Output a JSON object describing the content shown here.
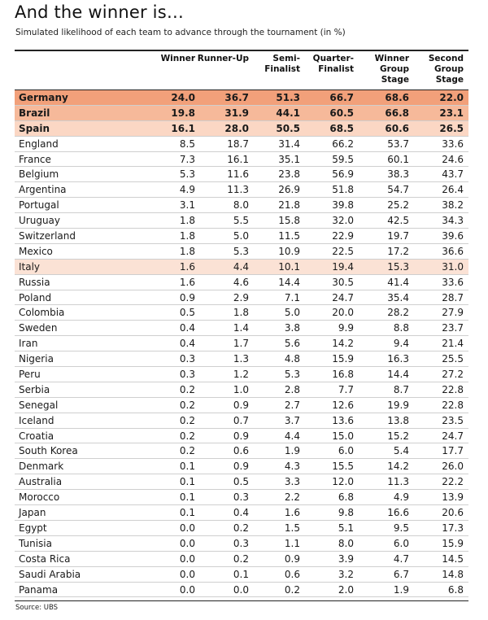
{
  "title": "And the winner is…",
  "subtitle": "Simulated likelihood of each team to advance through the tournament (in %)",
  "columns": [
    "Winner",
    "Runner-Up",
    "Semi-\nFinalist",
    "Quarter-\nFinalist",
    "Winner\nGroup\nStage",
    "Second\nGroup\nStage"
  ],
  "rows": [
    {
      "team": "Germany",
      "values": [
        "24.0",
        "36.7",
        "51.3",
        "66.7",
        "68.6",
        "22.0"
      ],
      "highlight": "#f2a07a",
      "bold": true
    },
    {
      "team": "Brazil",
      "values": [
        "19.8",
        "31.9",
        "44.1",
        "60.5",
        "66.8",
        "23.1"
      ],
      "highlight": "#f6b99a",
      "bold": true
    },
    {
      "team": "Spain",
      "values": [
        "16.1",
        "28.0",
        "50.5",
        "68.5",
        "60.6",
        "26.5"
      ],
      "highlight": "#fbd7c4",
      "bold": true
    },
    {
      "team": "England",
      "values": [
        "8.5",
        "18.7",
        "31.4",
        "66.2",
        "53.7",
        "33.6"
      ]
    },
    {
      "team": "France",
      "values": [
        "7.3",
        "16.1",
        "35.1",
        "59.5",
        "60.1",
        "24.6"
      ]
    },
    {
      "team": "Belgium",
      "values": [
        "5.3",
        "11.6",
        "23.8",
        "56.9",
        "38.3",
        "43.7"
      ]
    },
    {
      "team": "Argentina",
      "values": [
        "4.9",
        "11.3",
        "26.9",
        "51.8",
        "54.7",
        "26.4"
      ]
    },
    {
      "team": "Portugal",
      "values": [
        "3.1",
        "8.0",
        "21.8",
        "39.8",
        "25.2",
        "38.2"
      ]
    },
    {
      "team": "Uruguay",
      "values": [
        "1.8",
        "5.5",
        "15.8",
        "32.0",
        "42.5",
        "34.3"
      ]
    },
    {
      "team": "Switzerland",
      "values": [
        "1.8",
        "5.0",
        "11.5",
        "22.9",
        "19.7",
        "39.6"
      ]
    },
    {
      "team": "Mexico",
      "values": [
        "1.8",
        "5.3",
        "10.9",
        "22.5",
        "17.2",
        "36.6"
      ]
    },
    {
      "team": "Italy",
      "values": [
        "1.6",
        "4.4",
        "10.1",
        "19.4",
        "15.3",
        "31.0"
      ],
      "highlight": "#fbe2d5"
    },
    {
      "team": "Russia",
      "values": [
        "1.6",
        "4.6",
        "14.4",
        "30.5",
        "41.4",
        "33.6"
      ]
    },
    {
      "team": "Poland",
      "values": [
        "0.9",
        "2.9",
        "7.1",
        "24.7",
        "35.4",
        "28.7"
      ]
    },
    {
      "team": "Colombia",
      "values": [
        "0.5",
        "1.8",
        "5.0",
        "20.0",
        "28.2",
        "27.9"
      ]
    },
    {
      "team": "Sweden",
      "values": [
        "0.4",
        "1.4",
        "3.8",
        "9.9",
        "8.8",
        "23.7"
      ]
    },
    {
      "team": "Iran",
      "values": [
        "0.4",
        "1.7",
        "5.6",
        "14.2",
        "9.4",
        "21.4"
      ]
    },
    {
      "team": "Nigeria",
      "values": [
        "0.3",
        "1.3",
        "4.8",
        "15.9",
        "16.3",
        "25.5"
      ]
    },
    {
      "team": "Peru",
      "values": [
        "0.3",
        "1.2",
        "5.3",
        "16.8",
        "14.4",
        "27.2"
      ]
    },
    {
      "team": "Serbia",
      "values": [
        "0.2",
        "1.0",
        "2.8",
        "7.7",
        "8.7",
        "22.8"
      ]
    },
    {
      "team": "Senegal",
      "values": [
        "0.2",
        "0.9",
        "2.7",
        "12.6",
        "19.9",
        "22.8"
      ]
    },
    {
      "team": "Iceland",
      "values": [
        "0.2",
        "0.7",
        "3.7",
        "13.6",
        "13.8",
        "23.5"
      ]
    },
    {
      "team": "Croatia",
      "values": [
        "0.2",
        "0.9",
        "4.4",
        "15.0",
        "15.2",
        "24.7"
      ]
    },
    {
      "team": "South Korea",
      "values": [
        "0.2",
        "0.6",
        "1.9",
        "6.0",
        "5.4",
        "17.7"
      ]
    },
    {
      "team": "Denmark",
      "values": [
        "0.1",
        "0.9",
        "4.3",
        "15.5",
        "14.2",
        "26.0"
      ]
    },
    {
      "team": "Australia",
      "values": [
        "0.1",
        "0.5",
        "3.3",
        "12.0",
        "11.3",
        "22.2"
      ]
    },
    {
      "team": "Morocco",
      "values": [
        "0.1",
        "0.3",
        "2.2",
        "6.8",
        "4.9",
        "13.9"
      ]
    },
    {
      "team": "Japan",
      "values": [
        "0.1",
        "0.4",
        "1.6",
        "9.8",
        "16.6",
        "20.6"
      ]
    },
    {
      "team": "Egypt",
      "values": [
        "0.0",
        "0.2",
        "1.5",
        "5.1",
        "9.5",
        "17.3"
      ]
    },
    {
      "team": "Tunisia",
      "values": [
        "0.0",
        "0.3",
        "1.1",
        "8.0",
        "6.0",
        "15.9"
      ]
    },
    {
      "team": "Costa Rica",
      "values": [
        "0.0",
        "0.2",
        "0.9",
        "3.9",
        "4.7",
        "14.5"
      ]
    },
    {
      "team": "Saudi Arabia",
      "values": [
        "0.0",
        "0.1",
        "0.6",
        "3.2",
        "6.7",
        "14.8"
      ]
    },
    {
      "team": "Panama",
      "values": [
        "0.0",
        "0.0",
        "0.2",
        "2.0",
        "1.9",
        "6.8"
      ]
    }
  ],
  "source": "Source: UBS"
}
